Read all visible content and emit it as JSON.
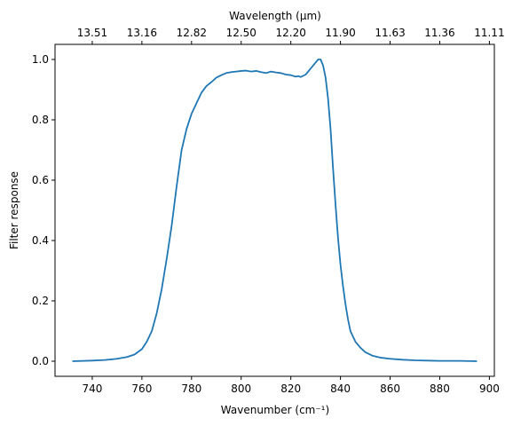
{
  "chart_data": {
    "type": "line",
    "title": "",
    "xlabel": "Wavenumber (cm⁻¹)",
    "ylabel": "Filter response",
    "xlim": [
      725,
      902
    ],
    "ylim": [
      -0.05,
      1.05
    ],
    "xticks": [
      740,
      760,
      780,
      800,
      820,
      840,
      860,
      880,
      900
    ],
    "yticks": [
      0.0,
      0.2,
      0.4,
      0.6,
      0.8,
      1.0
    ],
    "top_axis": {
      "label": "Wavelength (μm)",
      "tick_labels": [
        "13.51",
        "13.16",
        "12.82",
        "12.50",
        "12.20",
        "11.90",
        "11.63",
        "11.36",
        "11.11"
      ],
      "tick_positions_wavenumber": [
        740,
        760,
        780,
        800,
        820,
        840,
        860,
        880,
        900
      ]
    },
    "line_color": "#1f77b4",
    "grid": false,
    "series": [
      {
        "x": [
          732,
          740,
          745,
          750,
          754,
          757,
          760,
          762,
          764,
          766,
          768,
          770,
          772,
          774,
          776,
          778,
          780,
          782,
          784,
          786,
          788,
          790,
          792,
          794,
          796,
          798,
          800,
          802,
          804,
          806,
          808,
          810,
          812,
          814,
          816,
          818,
          820,
          822,
          823,
          824,
          826,
          828,
          830,
          831,
          832,
          833,
          834,
          835,
          836,
          837,
          838,
          839,
          840,
          841,
          842,
          843,
          844,
          846,
          848,
          850,
          853,
          856,
          860,
          865,
          870,
          875,
          880,
          888,
          895
        ],
        "y": [
          0.0,
          0.002,
          0.004,
          0.008,
          0.014,
          0.022,
          0.04,
          0.065,
          0.1,
          0.16,
          0.24,
          0.34,
          0.45,
          0.58,
          0.7,
          0.77,
          0.82,
          0.855,
          0.89,
          0.912,
          0.925,
          0.94,
          0.948,
          0.955,
          0.958,
          0.96,
          0.962,
          0.963,
          0.96,
          0.962,
          0.958,
          0.955,
          0.96,
          0.957,
          0.955,
          0.95,
          0.948,
          0.943,
          0.945,
          0.942,
          0.95,
          0.97,
          0.99,
          1.0,
          1.0,
          0.98,
          0.94,
          0.87,
          0.77,
          0.64,
          0.52,
          0.41,
          0.32,
          0.25,
          0.19,
          0.14,
          0.1,
          0.065,
          0.045,
          0.03,
          0.018,
          0.012,
          0.008,
          0.005,
          0.003,
          0.002,
          0.001,
          0.001,
          0.0
        ]
      }
    ]
  }
}
